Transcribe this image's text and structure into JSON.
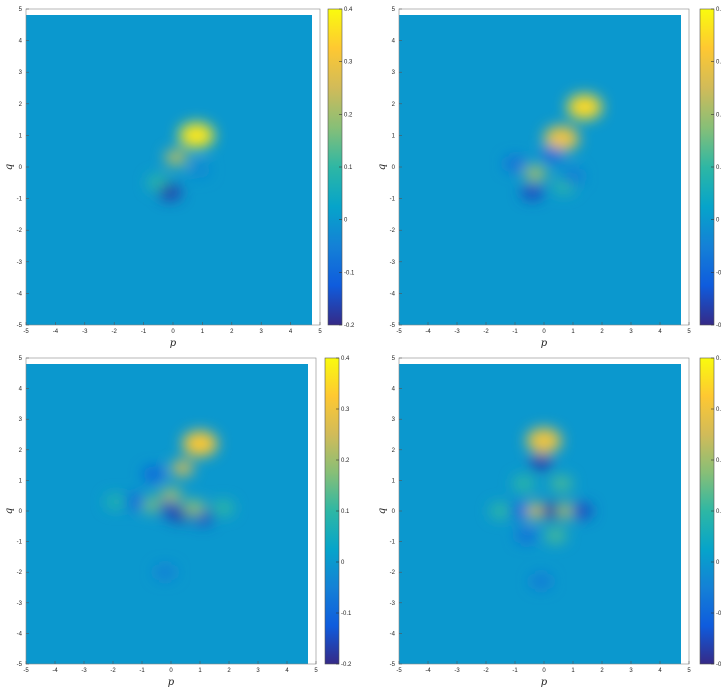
{
  "colormap": {
    "name": "parula",
    "stops": [
      "#352a87",
      "#0f5cdd",
      "#1481d6",
      "#06a4ca",
      "#2eb7a4",
      "#87bf77",
      "#d1bb59",
      "#fec832",
      "#f9fb0e"
    ]
  },
  "chart_data": [
    {
      "type": "heatmap",
      "xlabel": "p",
      "ylabel": "q",
      "xlim": [
        -5,
        5
      ],
      "ylim": [
        -5,
        5
      ],
      "xticks": [
        "-5",
        "-4",
        "-3",
        "-2",
        "-1",
        "0",
        "1",
        "2",
        "3",
        "4",
        "5"
      ],
      "yticks": [
        "5",
        "4",
        "3",
        "2",
        "1",
        "0",
        "-1",
        "-2",
        "-3",
        "-4",
        "-5"
      ],
      "clim": [
        -0.2,
        0.4
      ],
      "colorbar_ticks": [
        "0.4",
        "0.3",
        "0.2",
        "0.1",
        "0",
        "-0.1",
        "-0.2"
      ],
      "features": [
        {
          "p": 0.8,
          "q": 1.0,
          "value": 0.37
        },
        {
          "p": 0.1,
          "q": 0.3,
          "value": 0.22
        },
        {
          "p": -0.5,
          "q": -0.5,
          "value": 0.1
        },
        {
          "p": -0.1,
          "q": -0.8,
          "value": -0.17
        },
        {
          "p": 0.9,
          "q": -0.1,
          "value": -0.03
        }
      ]
    },
    {
      "type": "heatmap",
      "xlabel": "p",
      "ylabel": "q",
      "xlim": [
        -5,
        5
      ],
      "ylim": [
        -5,
        5
      ],
      "xticks": [
        "-5",
        "-4",
        "-3",
        "-2",
        "-1",
        "0",
        "1",
        "2",
        "3",
        "4",
        "5"
      ],
      "yticks": [
        "5",
        "4",
        "3",
        "2",
        "1",
        "0",
        "-1",
        "-2",
        "-3",
        "-4",
        "-5"
      ],
      "clim": [
        -0.2,
        0.4
      ],
      "colorbar_ticks": [
        "0.",
        "0.",
        "0.",
        "0.",
        "0",
        "-0",
        "-0"
      ],
      "features": [
        {
          "p": 1.4,
          "q": 1.9,
          "value": 0.35
        },
        {
          "p": 0.6,
          "q": 0.9,
          "value": 0.3
        },
        {
          "p": -0.3,
          "q": -0.2,
          "value": 0.2
        },
        {
          "p": -0.4,
          "q": -0.8,
          "value": -0.15
        },
        {
          "p": 0.3,
          "q": 0.4,
          "value": -0.1
        },
        {
          "p": -1.0,
          "q": 0.1,
          "value": -0.08
        },
        {
          "p": 0.7,
          "q": -0.6,
          "value": 0.1
        },
        {
          "p": 1.0,
          "q": -0.3,
          "value": -0.06
        }
      ]
    },
    {
      "type": "heatmap",
      "xlabel": "p",
      "ylabel": "q",
      "xlim": [
        -5,
        5
      ],
      "ylim": [
        -5,
        5
      ],
      "xticks": [
        "-5",
        "-4",
        "-3",
        "-2",
        "-1",
        "0",
        "1",
        "2",
        "3",
        "4",
        "5"
      ],
      "yticks": [
        "5",
        "4",
        "3",
        "2",
        "1",
        "0",
        "-1",
        "-2",
        "-3",
        "-4",
        "-5"
      ],
      "clim": [
        -0.2,
        0.4
      ],
      "colorbar_ticks": [
        "0.4",
        "0.3",
        "0.2",
        "0.1",
        "0",
        "-0.1",
        "-0.2"
      ],
      "features": [
        {
          "p": 1.0,
          "q": 2.2,
          "value": 0.32
        },
        {
          "p": 0.4,
          "q": 1.4,
          "value": 0.25
        },
        {
          "p": 0.0,
          "q": 0.5,
          "value": 0.2
        },
        {
          "p": -0.2,
          "q": 0.1,
          "value": -0.15
        },
        {
          "p": 0.3,
          "q": -0.1,
          "value": -0.17
        },
        {
          "p": 1.1,
          "q": -0.2,
          "value": -0.15
        },
        {
          "p": 0.8,
          "q": 0.1,
          "value": 0.18
        },
        {
          "p": -0.7,
          "q": 0.2,
          "value": 0.15
        },
        {
          "p": -1.3,
          "q": 0.3,
          "value": -0.1
        },
        {
          "p": -0.6,
          "q": 1.2,
          "value": -0.1
        },
        {
          "p": 1.8,
          "q": 0.1,
          "value": 0.1
        },
        {
          "p": -1.9,
          "q": 0.3,
          "value": 0.08
        },
        {
          "p": -0.2,
          "q": -2.0,
          "value": -0.05
        }
      ]
    },
    {
      "type": "heatmap",
      "xlabel": "p",
      "ylabel": "q",
      "xlim": [
        -5,
        5
      ],
      "ylim": [
        -5,
        5
      ],
      "xticks": [
        "-5",
        "-4",
        "-3",
        "-2",
        "-1",
        "0",
        "1",
        "2",
        "3",
        "4",
        "5"
      ],
      "yticks": [
        "5",
        "4",
        "3",
        "2",
        "1",
        "0",
        "-1",
        "-2",
        "-3",
        "-4",
        "-5"
      ],
      "clim": [
        -0.2,
        0.4
      ],
      "colorbar_ticks": [
        "0.",
        "0.",
        "0.",
        "0.",
        "0",
        "-0",
        "-0"
      ],
      "features": [
        {
          "p": 0.0,
          "q": 2.3,
          "value": 0.3
        },
        {
          "p": -0.1,
          "q": 1.6,
          "value": -0.17
        },
        {
          "p": -0.3,
          "q": 0.0,
          "value": 0.25
        },
        {
          "p": 0.3,
          "q": 0.0,
          "value": -0.18
        },
        {
          "p": 0.8,
          "q": 0.0,
          "value": 0.2
        },
        {
          "p": 1.3,
          "q": 0.0,
          "value": -0.15
        },
        {
          "p": -0.9,
          "q": 0.0,
          "value": -0.1
        },
        {
          "p": -1.5,
          "q": 0.0,
          "value": 0.1
        },
        {
          "p": 0.6,
          "q": 0.9,
          "value": 0.12
        },
        {
          "p": -0.7,
          "q": 0.9,
          "value": 0.1
        },
        {
          "p": 0.4,
          "q": -0.8,
          "value": 0.12
        },
        {
          "p": -0.6,
          "q": -0.8,
          "value": -0.08
        },
        {
          "p": -0.1,
          "q": -2.3,
          "value": -0.06
        }
      ]
    }
  ]
}
